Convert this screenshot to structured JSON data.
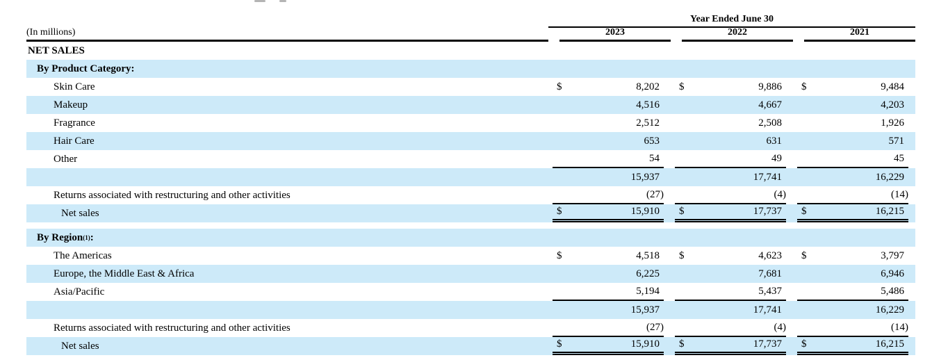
{
  "colors": {
    "row_highlight": "#cdeaf9",
    "rule": "#000000",
    "text": "#000000"
  },
  "table": {
    "units_label": "(In millions)",
    "period_header": "Year Ended June 30",
    "years": [
      "2023",
      "2022",
      "2021"
    ],
    "section_title": "NET SALES",
    "groups": [
      {
        "heading": {
          "label": "By Product Category:",
          "sup": "",
          "suffix": ""
        },
        "rows": [
          {
            "label": "Skin Care",
            "dollar": true,
            "shaded": false,
            "values": [
              "8,202",
              "9,886",
              "9,484"
            ],
            "rule_below": null
          },
          {
            "label": "Makeup",
            "dollar": false,
            "shaded": true,
            "values": [
              "4,516",
              "4,667",
              "4,203"
            ],
            "rule_below": null
          },
          {
            "label": "Fragrance",
            "dollar": false,
            "shaded": false,
            "values": [
              "2,512",
              "2,508",
              "1,926"
            ],
            "rule_below": null
          },
          {
            "label": "Hair Care",
            "dollar": false,
            "shaded": true,
            "values": [
              "653",
              "631",
              "571"
            ],
            "rule_below": null
          },
          {
            "label": "Other",
            "dollar": false,
            "shaded": false,
            "values": [
              "54",
              "49",
              "45"
            ],
            "rule_below": "single"
          },
          {
            "label": "",
            "dollar": false,
            "shaded": true,
            "values": [
              "15,937",
              "17,741",
              "16,229"
            ],
            "rule_below": null
          },
          {
            "label": "Returns associated with restructuring and other activities",
            "dollar": false,
            "shaded": false,
            "values": [
              "(27)",
              "(4)",
              "(14)"
            ],
            "rule_below": "single"
          },
          {
            "label": "Net sales",
            "dollar": true,
            "shaded": true,
            "values": [
              "15,910",
              "17,737",
              "16,215"
            ],
            "rule_below": "double",
            "extra_indent": true
          }
        ]
      },
      {
        "heading": {
          "label": "By Region",
          "sup": "(1)",
          "suffix": ":"
        },
        "rows": [
          {
            "label": "The Americas",
            "dollar": true,
            "shaded": false,
            "values": [
              "4,518",
              "4,623",
              "3,797"
            ],
            "rule_below": null
          },
          {
            "label": "Europe, the Middle East & Africa",
            "dollar": false,
            "shaded": true,
            "values": [
              "6,225",
              "7,681",
              "6,946"
            ],
            "rule_below": null
          },
          {
            "label": "Asia/Pacific",
            "dollar": false,
            "shaded": false,
            "values": [
              "5,194",
              "5,437",
              "5,486"
            ],
            "rule_below": "single"
          },
          {
            "label": "",
            "dollar": false,
            "shaded": true,
            "values": [
              "15,937",
              "17,741",
              "16,229"
            ],
            "rule_below": null
          },
          {
            "label": "Returns associated with restructuring and other activities",
            "dollar": false,
            "shaded": false,
            "values": [
              "(27)",
              "(4)",
              "(14)"
            ],
            "rule_below": "single"
          },
          {
            "label": "Net sales",
            "dollar": true,
            "shaded": true,
            "values": [
              "15,910",
              "17,737",
              "16,215"
            ],
            "rule_below": "double",
            "extra_indent": true
          }
        ]
      }
    ]
  }
}
